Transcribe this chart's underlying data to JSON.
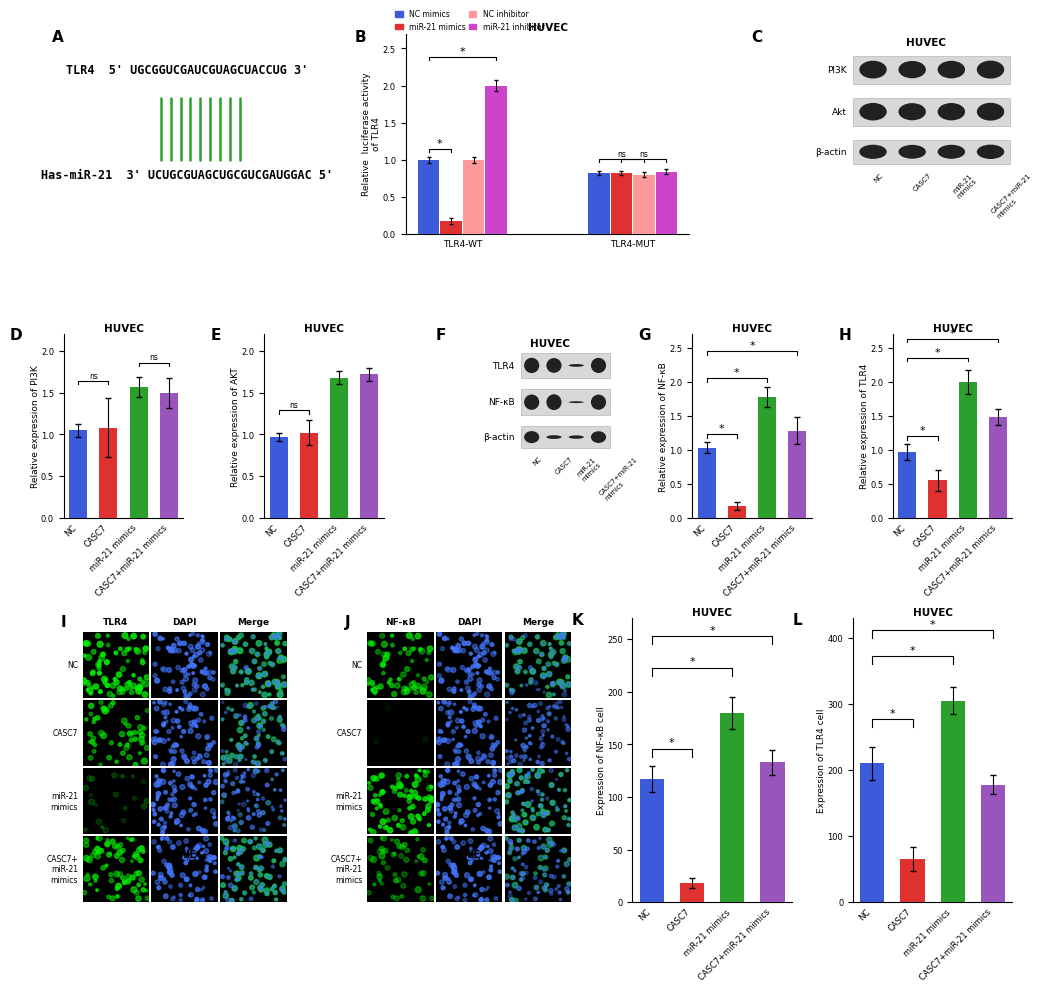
{
  "panel_A": {
    "tlr4_seq": "TLR4  5’ UGCGGUCGAUCGUAGCUACCUG 3’",
    "mirna_seq": "Has-miR-21  3’ UCUGCGUAGCUGCGUCGAUGGAC 5’",
    "line_color": "#2ca02c",
    "n_lines": 9
  },
  "panel_B": {
    "title": "HUVEC",
    "groups": [
      "TLR4-WT",
      "TLR4-MUT"
    ],
    "conditions": [
      "NC mimics",
      "miR-21 mimics",
      "NC inhibitor",
      "miR-21 inhibitor"
    ],
    "colors": [
      "#3b5bdb",
      "#e03131",
      "#ff9999",
      "#cc44cc"
    ],
    "values_WT": [
      1.0,
      0.18,
      1.0,
      2.0
    ],
    "values_MUT": [
      0.82,
      0.82,
      0.8,
      0.84
    ],
    "errors_WT": [
      0.04,
      0.04,
      0.04,
      0.07
    ],
    "errors_MUT": [
      0.03,
      0.03,
      0.03,
      0.03
    ],
    "ylabel": "Relative  luciferase activity\nof TLR4",
    "ylim": [
      0.0,
      2.7
    ],
    "yticks": [
      0.0,
      0.5,
      1.0,
      1.5,
      2.0,
      2.5
    ]
  },
  "panel_D": {
    "title": "HUVEC",
    "ylabel": "Relative expression of PI3K",
    "categories": [
      "NC",
      "CASC7",
      "miR-21 mimics",
      "CASC7+miR-21 mimics"
    ],
    "values": [
      1.05,
      1.08,
      1.57,
      1.5
    ],
    "errors": [
      0.08,
      0.35,
      0.12,
      0.18
    ],
    "colors": [
      "#3b5bdb",
      "#e03131",
      "#2ca02c",
      "#9955bb"
    ],
    "ylim": [
      0.0,
      2.2
    ],
    "yticks": [
      0.0,
      0.5,
      1.0,
      1.5,
      2.0
    ]
  },
  "panel_E": {
    "title": "HUVEC",
    "ylabel": "Relative expression of AKT",
    "categories": [
      "NC",
      "CASC7",
      "miR-21 mimics",
      "CASC7+miR-21 mimics"
    ],
    "values": [
      0.97,
      1.02,
      1.68,
      1.72
    ],
    "errors": [
      0.05,
      0.15,
      0.08,
      0.08
    ],
    "colors": [
      "#3b5bdb",
      "#e03131",
      "#2ca02c",
      "#9955bb"
    ],
    "ylim": [
      0.0,
      2.2
    ],
    "yticks": [
      0.0,
      0.5,
      1.0,
      1.5,
      2.0
    ]
  },
  "panel_G": {
    "title": "HUVEC",
    "ylabel": "Relative expression of NF-κB",
    "categories": [
      "NC",
      "CASC7",
      "miR-21 mimics",
      "CASC7+miR-21 mimics"
    ],
    "values": [
      1.03,
      0.18,
      1.78,
      1.28
    ],
    "errors": [
      0.08,
      0.06,
      0.15,
      0.2
    ],
    "colors": [
      "#3b5bdb",
      "#e03131",
      "#2ca02c",
      "#9955bb"
    ],
    "ylim": [
      0.0,
      2.7
    ],
    "yticks": [
      0.0,
      0.5,
      1.0,
      1.5,
      2.0,
      2.5
    ]
  },
  "panel_H": {
    "title": "HUVEC",
    "ylabel": "Relative expression of TLR4",
    "categories": [
      "NC",
      "CASC7",
      "miR-21 mimics",
      "CASC7+miR-21 mimics"
    ],
    "values": [
      0.97,
      0.55,
      2.0,
      1.48
    ],
    "errors": [
      0.12,
      0.15,
      0.18,
      0.12
    ],
    "colors": [
      "#3b5bdb",
      "#e03131",
      "#2ca02c",
      "#9955bb"
    ],
    "ylim": [
      0.0,
      2.7
    ],
    "yticks": [
      0.0,
      0.5,
      1.0,
      1.5,
      2.0,
      2.5
    ]
  },
  "panel_K": {
    "title": "HUVEC",
    "ylabel": "Expression of NF-κB cell",
    "categories": [
      "NC",
      "CASC7",
      "miR-21 mimics",
      "CASC7+miR-21 mimics"
    ],
    "values": [
      117,
      18,
      180,
      133
    ],
    "errors": [
      12,
      5,
      15,
      12
    ],
    "colors": [
      "#3b5bdb",
      "#e03131",
      "#2ca02c",
      "#9955bb"
    ],
    "ylim": [
      0,
      270
    ],
    "yticks": [
      0,
      50,
      100,
      150,
      200,
      250
    ]
  },
  "panel_L": {
    "title": "HUVEC",
    "ylabel": "Expression of TLR4 cell",
    "categories": [
      "NC",
      "CASC7",
      "miR-21 mimics",
      "CASC7+miR-21 mimics"
    ],
    "values": [
      210,
      65,
      305,
      178
    ],
    "errors": [
      25,
      18,
      20,
      15
    ],
    "colors": [
      "#3b5bdb",
      "#e03131",
      "#2ca02c",
      "#9955bb"
    ],
    "ylim": [
      0,
      430
    ],
    "yticks": [
      0,
      100,
      200,
      300,
      400
    ]
  },
  "label_fontsize": 6.5,
  "title_fontsize": 7.5,
  "tick_fontsize": 6.0
}
